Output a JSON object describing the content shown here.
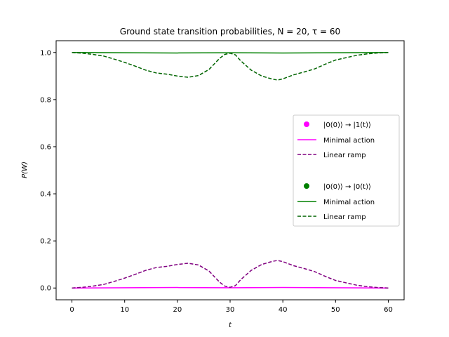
{
  "chart_data": {
    "type": "line",
    "title": "Ground state transition probabilities, N = 20, τ = 60",
    "xlabel": "t",
    "ylabel": "P(W)",
    "xlim": [
      -3,
      63
    ],
    "ylim": [
      -0.05,
      1.05
    ],
    "xticks": [
      0,
      10,
      20,
      30,
      40,
      50,
      60
    ],
    "yticks": [
      0.0,
      0.2,
      0.4,
      0.6,
      0.8,
      1.0
    ],
    "xtick_labels": [
      "0",
      "10",
      "20",
      "30",
      "40",
      "50",
      "60"
    ],
    "ytick_labels": [
      "0.0",
      "0.2",
      "0.4",
      "0.6",
      "0.8",
      "1.0"
    ],
    "legend_position": "center-right",
    "legend": {
      "group1_marker": "|0(0)⟩ → |1(t)⟩",
      "group1_line1": "Minimal action",
      "group1_line2": "Linear ramp",
      "group2_marker": "|0(0)⟩ → |0(t)⟩",
      "group2_line1": "Minimal action",
      "group2_line2": "Linear ramp"
    },
    "series": [
      {
        "name": "Minimal action",
        "group": "|0(0)⟩ → |1(t)⟩",
        "color": "#ff00ff",
        "style": "solid",
        "x": [
          0,
          10,
          20,
          30,
          40,
          50,
          60
        ],
        "y": [
          0.0,
          0.001,
          0.002,
          0.001,
          0.002,
          0.001,
          0.0
        ]
      },
      {
        "name": "Linear ramp",
        "group": "|0(0)⟩ → |1(t)⟩",
        "color": "#800080",
        "style": "dashed",
        "x": [
          0,
          2,
          4,
          6,
          8,
          10,
          12,
          14,
          16,
          18,
          20,
          22,
          24,
          26,
          28,
          29,
          30,
          31,
          32,
          34,
          36,
          38,
          39,
          40,
          42,
          44,
          46,
          48,
          50,
          52,
          54,
          56,
          58,
          60
        ],
        "y": [
          0.0,
          0.003,
          0.008,
          0.015,
          0.028,
          0.042,
          0.058,
          0.075,
          0.087,
          0.092,
          0.1,
          0.105,
          0.098,
          0.072,
          0.025,
          0.008,
          0.003,
          0.01,
          0.035,
          0.075,
          0.1,
          0.113,
          0.117,
          0.112,
          0.095,
          0.083,
          0.07,
          0.05,
          0.032,
          0.022,
          0.012,
          0.006,
          0.002,
          0.0
        ]
      },
      {
        "name": "Minimal action",
        "group": "|0(0)⟩ → |0(t)⟩",
        "color": "#008000",
        "style": "solid",
        "x": [
          0,
          10,
          20,
          30,
          40,
          50,
          60
        ],
        "y": [
          1.0,
          0.999,
          0.998,
          0.999,
          0.998,
          0.999,
          1.0
        ]
      },
      {
        "name": "Linear ramp",
        "group": "|0(0)⟩ → |0(t)⟩",
        "color": "#006400",
        "style": "dashed",
        "x": [
          0,
          2,
          4,
          6,
          8,
          10,
          12,
          14,
          16,
          18,
          20,
          22,
          24,
          26,
          28,
          29,
          30,
          31,
          32,
          34,
          36,
          38,
          39,
          40,
          42,
          44,
          46,
          48,
          50,
          52,
          54,
          56,
          58,
          60
        ],
        "y": [
          1.0,
          0.997,
          0.992,
          0.985,
          0.972,
          0.958,
          0.942,
          0.925,
          0.913,
          0.908,
          0.9,
          0.895,
          0.902,
          0.928,
          0.975,
          0.992,
          0.997,
          0.99,
          0.965,
          0.925,
          0.9,
          0.887,
          0.883,
          0.888,
          0.905,
          0.917,
          0.93,
          0.95,
          0.968,
          0.978,
          0.988,
          0.994,
          0.998,
          1.0
        ]
      }
    ]
  }
}
